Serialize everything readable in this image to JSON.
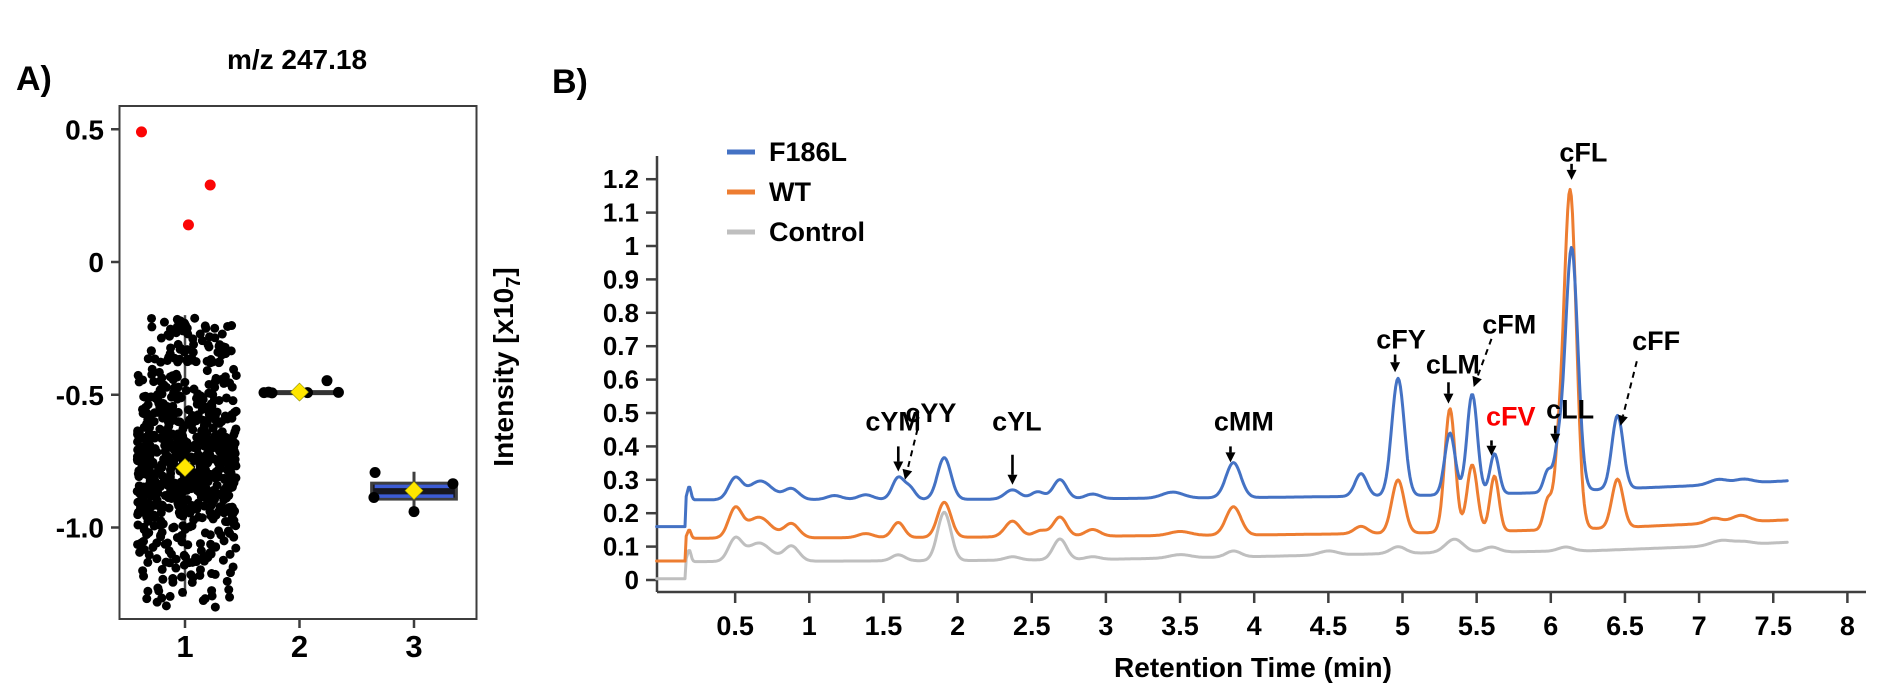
{
  "figure": {
    "panel_a_label": "A)",
    "panel_b_label": "B)"
  },
  "chart_data": [
    {
      "id": "A",
      "type": "scatter",
      "title": "m/z 247.18",
      "xlabel": "",
      "ylabel": "",
      "x_ticks": [
        1,
        2,
        3
      ],
      "x_tick_labels": [
        "1",
        "2",
        "3"
      ],
      "y_ticks": [
        0.5,
        0,
        -0.5,
        -1.0
      ],
      "y_tick_labels": [
        "0.5",
        "0",
        "-0.5",
        "-1.0"
      ],
      "x_range": [
        0.42,
        3.55
      ],
      "y_range": [
        -1.35,
        0.585
      ],
      "grid": false,
      "colors": {
        "points": "#000000",
        "outliers": "#fb0505",
        "mean_marker": "#ffe600",
        "box_line": "#3d5cd4",
        "box_fill": "#17171f",
        "axis": "#3d3d3d"
      },
      "red_outliers": [
        [
          0.62,
          0.49
        ],
        [
          1.03,
          0.14
        ],
        [
          1.22,
          0.29
        ]
      ],
      "groups": [
        {
          "x": 1,
          "mean": -0.774,
          "whisker_hi": -0.2,
          "whisker_lo": -1.26,
          "cloud": {
            "seed": 1234,
            "n_core": 620,
            "core_x": [
              0.58,
              1.45
            ],
            "core_y_mean": -0.75,
            "core_y_sd": 0.185,
            "core_y_clip": [
              -1.1,
              -0.38
            ],
            "n_upper": 70,
            "upper_x": [
              0.66,
              1.41
            ],
            "upper_y": [
              -0.38,
              -0.21
            ],
            "n_lower": 55,
            "lower_x": [
              0.62,
              1.42
            ],
            "lower_y": [
              -1.1,
              -1.3
            ]
          }
        },
        {
          "x": 2,
          "mean": -0.49,
          "line_y": -0.492,
          "line_span": [
            1.66,
            2.36
          ],
          "points": [
            [
              1.69,
              -0.492
            ],
            [
              1.73,
              -0.49
            ],
            [
              1.76,
              -0.493
            ],
            [
              2.07,
              -0.492
            ],
            [
              2.34,
              -0.491
            ],
            [
              2.24,
              -0.447
            ]
          ]
        },
        {
          "x": 3,
          "mean": -0.861,
          "box": {
            "x0": 2.63,
            "x1": 3.37,
            "top": -0.833,
            "bottom": -0.893,
            "inner_lines": [
              -0.845,
              -0.882
            ]
          },
          "whisker": [
            -0.79,
            -0.935
          ],
          "points": [
            [
              2.66,
              -0.793
            ],
            [
              2.65,
              -0.887
            ],
            [
              3.34,
              -0.835
            ],
            [
              3.0,
              -0.94
            ]
          ]
        }
      ]
    },
    {
      "id": "B",
      "type": "line",
      "title": "",
      "xlabel": "Retention Time (min)",
      "ylabel": "Intensity [x10₇]",
      "ylabel_main": "Intensity  [x10",
      "ylabel_sub": "7",
      "ylabel_close": "]",
      "x_ticks": [
        0.5,
        1,
        1.5,
        2,
        2.5,
        3,
        3.5,
        4,
        4.5,
        5,
        5.5,
        6,
        6.5,
        7,
        7.5,
        8
      ],
      "y_ticks": [
        0,
        0.1,
        0.2,
        0.3,
        0.4,
        0.5,
        0.6,
        0.7,
        0.8,
        0.9,
        1,
        1.1,
        1.2
      ],
      "y_tick_labels": [
        "0",
        "0.1",
        "0.2",
        "0.3",
        "0.4",
        "0.5",
        "0.6",
        "0.7",
        "0.8",
        "0.9",
        "1",
        "1.1",
        "1.2"
      ],
      "x_range": [
        0,
        8.1
      ],
      "y_range": [
        0,
        1.3
      ],
      "grid": false,
      "legend_position": "top-left-inside",
      "legend": [
        {
          "name": "F186L",
          "color": "#4472c4"
        },
        {
          "name": "WT",
          "color": "#ed7d31"
        },
        {
          "name": "Control",
          "color": "#bfbfbf"
        }
      ],
      "series": [
        {
          "name": "Control",
          "color": "#bfbfbf",
          "start_value": 0.004,
          "step_t": 0.17,
          "spike": 0.035,
          "end_t": 7.6,
          "baseline": [
            [
              0.17,
              0.055
            ],
            [
              2.0,
              0.058
            ],
            [
              3.0,
              0.062
            ],
            [
              4.0,
              0.07
            ],
            [
              5.0,
              0.08
            ],
            [
              6.3,
              0.088
            ],
            [
              7.0,
              0.1
            ],
            [
              7.6,
              0.113
            ]
          ],
          "peaks": [
            [
              0.5,
              0.065,
              0.045
            ],
            [
              0.66,
              0.055,
              0.08
            ],
            [
              0.88,
              0.045,
              0.05
            ],
            [
              1.6,
              0.018,
              0.045
            ],
            [
              1.91,
              0.145,
              0.045
            ],
            [
              2.37,
              0.01,
              0.05
            ],
            [
              2.69,
              0.062,
              0.045
            ],
            [
              2.91,
              0.008,
              0.05
            ],
            [
              3.5,
              0.01,
              0.07
            ],
            [
              3.86,
              0.018,
              0.05
            ],
            [
              4.5,
              0.012,
              0.06
            ],
            [
              4.97,
              0.02,
              0.05
            ],
            [
              5.35,
              0.04,
              0.06
            ],
            [
              5.6,
              0.015,
              0.05
            ],
            [
              6.1,
              0.012,
              0.05
            ],
            [
              7.15,
              0.015,
              0.07
            ],
            [
              7.3,
              0.008,
              0.06
            ]
          ]
        },
        {
          "name": "WT",
          "color": "#ed7d31",
          "start_value": 0.057,
          "step_t": 0.17,
          "spike": 0.025,
          "end_t": 7.6,
          "baseline": [
            [
              0.17,
              0.125
            ],
            [
              2.0,
              0.128
            ],
            [
              4.0,
              0.135
            ],
            [
              5.0,
              0.14
            ],
            [
              6.0,
              0.15
            ],
            [
              6.35,
              0.155
            ],
            [
              7.0,
              0.168
            ],
            [
              7.6,
              0.18
            ]
          ],
          "peaks": [
            [
              0.5,
              0.085,
              0.045
            ],
            [
              0.66,
              0.062,
              0.08
            ],
            [
              0.88,
              0.042,
              0.05
            ],
            [
              1.38,
              0.012,
              0.05
            ],
            [
              1.6,
              0.045,
              0.04
            ],
            [
              1.91,
              0.105,
              0.045
            ],
            [
              2.37,
              0.047,
              0.05
            ],
            [
              2.56,
              0.018,
              0.045
            ],
            [
              2.69,
              0.058,
              0.045
            ],
            [
              2.91,
              0.02,
              0.05
            ],
            [
              3.5,
              0.012,
              0.07
            ],
            [
              3.86,
              0.085,
              0.05
            ],
            [
              4.72,
              0.022,
              0.045
            ],
            [
              4.97,
              0.16,
              0.042
            ],
            [
              5.32,
              0.37,
              0.035
            ],
            [
              5.47,
              0.2,
              0.035
            ],
            [
              5.62,
              0.165,
              0.03
            ],
            [
              5.98,
              0.09,
              0.028
            ],
            [
              6.05,
              0.155,
              0.028
            ],
            [
              6.13,
              1.015,
              0.042
            ],
            [
              6.45,
              0.145,
              0.038
            ],
            [
              7.1,
              0.015,
              0.05
            ],
            [
              7.28,
              0.02,
              0.06
            ]
          ]
        },
        {
          "name": "F186L",
          "color": "#4472c4",
          "start_value": 0.16,
          "step_t": 0.17,
          "spike": 0.04,
          "end_t": 7.6,
          "baseline": [
            [
              0.17,
              0.24
            ],
            [
              2.5,
              0.242
            ],
            [
              4.0,
              0.247
            ],
            [
              5.0,
              0.252
            ],
            [
              6.0,
              0.262
            ],
            [
              6.3,
              0.27
            ],
            [
              7.0,
              0.283
            ],
            [
              7.6,
              0.297
            ]
          ],
          "peaks": [
            [
              0.5,
              0.062,
              0.045
            ],
            [
              0.67,
              0.056,
              0.08
            ],
            [
              0.88,
              0.032,
              0.05
            ],
            [
              1.17,
              0.012,
              0.05
            ],
            [
              1.38,
              0.014,
              0.05
            ],
            [
              1.6,
              0.065,
              0.04
            ],
            [
              1.68,
              0.032,
              0.035
            ],
            [
              1.91,
              0.125,
              0.045
            ],
            [
              2.37,
              0.028,
              0.05
            ],
            [
              2.54,
              0.022,
              0.045
            ],
            [
              2.69,
              0.058,
              0.045
            ],
            [
              2.91,
              0.014,
              0.05
            ],
            [
              3.45,
              0.018,
              0.07
            ],
            [
              3.86,
              0.105,
              0.05
            ],
            [
              4.72,
              0.068,
              0.04
            ],
            [
              4.97,
              0.352,
              0.042
            ],
            [
              5.32,
              0.185,
              0.035
            ],
            [
              5.47,
              0.3,
              0.035
            ],
            [
              5.62,
              0.12,
              0.03
            ],
            [
              5.98,
              0.065,
              0.028
            ],
            [
              6.05,
              0.105,
              0.028
            ],
            [
              6.14,
              0.73,
              0.042
            ],
            [
              6.45,
              0.22,
              0.038
            ],
            [
              7.13,
              0.015,
              0.06
            ],
            [
              7.3,
              0.012,
              0.06
            ]
          ]
        }
      ],
      "peak_labels": [
        {
          "text": "cYM",
          "color": "#000000",
          "tx": 1.565,
          "ty": 0.475,
          "arrow": [
            [
              1.6,
              0.4
            ],
            [
              1.6,
              0.325
            ]
          ],
          "dashed": false
        },
        {
          "text": "cYY",
          "color": "#000000",
          "tx": 1.82,
          "ty": 0.5,
          "arrow": [
            [
              1.73,
              0.452
            ],
            [
              1.645,
              0.3
            ]
          ],
          "dashed": true
        },
        {
          "text": "cYL",
          "color": "#000000",
          "tx": 2.4,
          "ty": 0.475,
          "arrow": [
            [
              2.37,
              0.375
            ],
            [
              2.37,
              0.285
            ]
          ],
          "dashed": false
        },
        {
          "text": "cMM",
          "color": "#000000",
          "tx": 3.93,
          "ty": 0.475,
          "arrow": [
            [
              3.84,
              0.4
            ],
            [
              3.84,
              0.352
            ]
          ],
          "dashed": false
        },
        {
          "text": "cFY",
          "color": "#000000",
          "tx": 4.99,
          "ty": 0.72,
          "arrow": [
            [
              4.95,
              0.675
            ],
            [
              4.95,
              0.622
            ]
          ],
          "dashed": false
        },
        {
          "text": "cLM",
          "color": "#000000",
          "tx": 5.34,
          "ty": 0.645,
          "arrow": [
            [
              5.31,
              0.592
            ],
            [
              5.31,
              0.528
            ]
          ],
          "dashed": false
        },
        {
          "text": "cFM",
          "color": "#000000",
          "tx": 5.72,
          "ty": 0.765,
          "arrow": [
            [
              5.6,
              0.722
            ],
            [
              5.48,
              0.578
            ]
          ],
          "dashed": true
        },
        {
          "text": "cFV",
          "color": "#fb0000",
          "tx": 5.73,
          "ty": 0.49,
          "arrow": [
            [
              5.6,
              0.418
            ],
            [
              5.6,
              0.372
            ]
          ],
          "dashed": false
        },
        {
          "text": "cLL",
          "color": "#000000",
          "tx": 6.13,
          "ty": 0.51,
          "arrow": [
            [
              6.03,
              0.462
            ],
            [
              6.03,
              0.408
            ]
          ],
          "dashed": false
        },
        {
          "text": "cFL",
          "color": "#000000",
          "tx": 6.22,
          "ty": 1.28,
          "arrow": [
            [
              6.14,
              1.246
            ],
            [
              6.14,
              1.198
            ]
          ],
          "dashed": false
        },
        {
          "text": "cFF",
          "color": "#000000",
          "tx": 6.71,
          "ty": 0.715,
          "arrow": [
            [
              6.58,
              0.655
            ],
            [
              6.47,
              0.462
            ]
          ],
          "dashed": true
        }
      ]
    }
  ]
}
